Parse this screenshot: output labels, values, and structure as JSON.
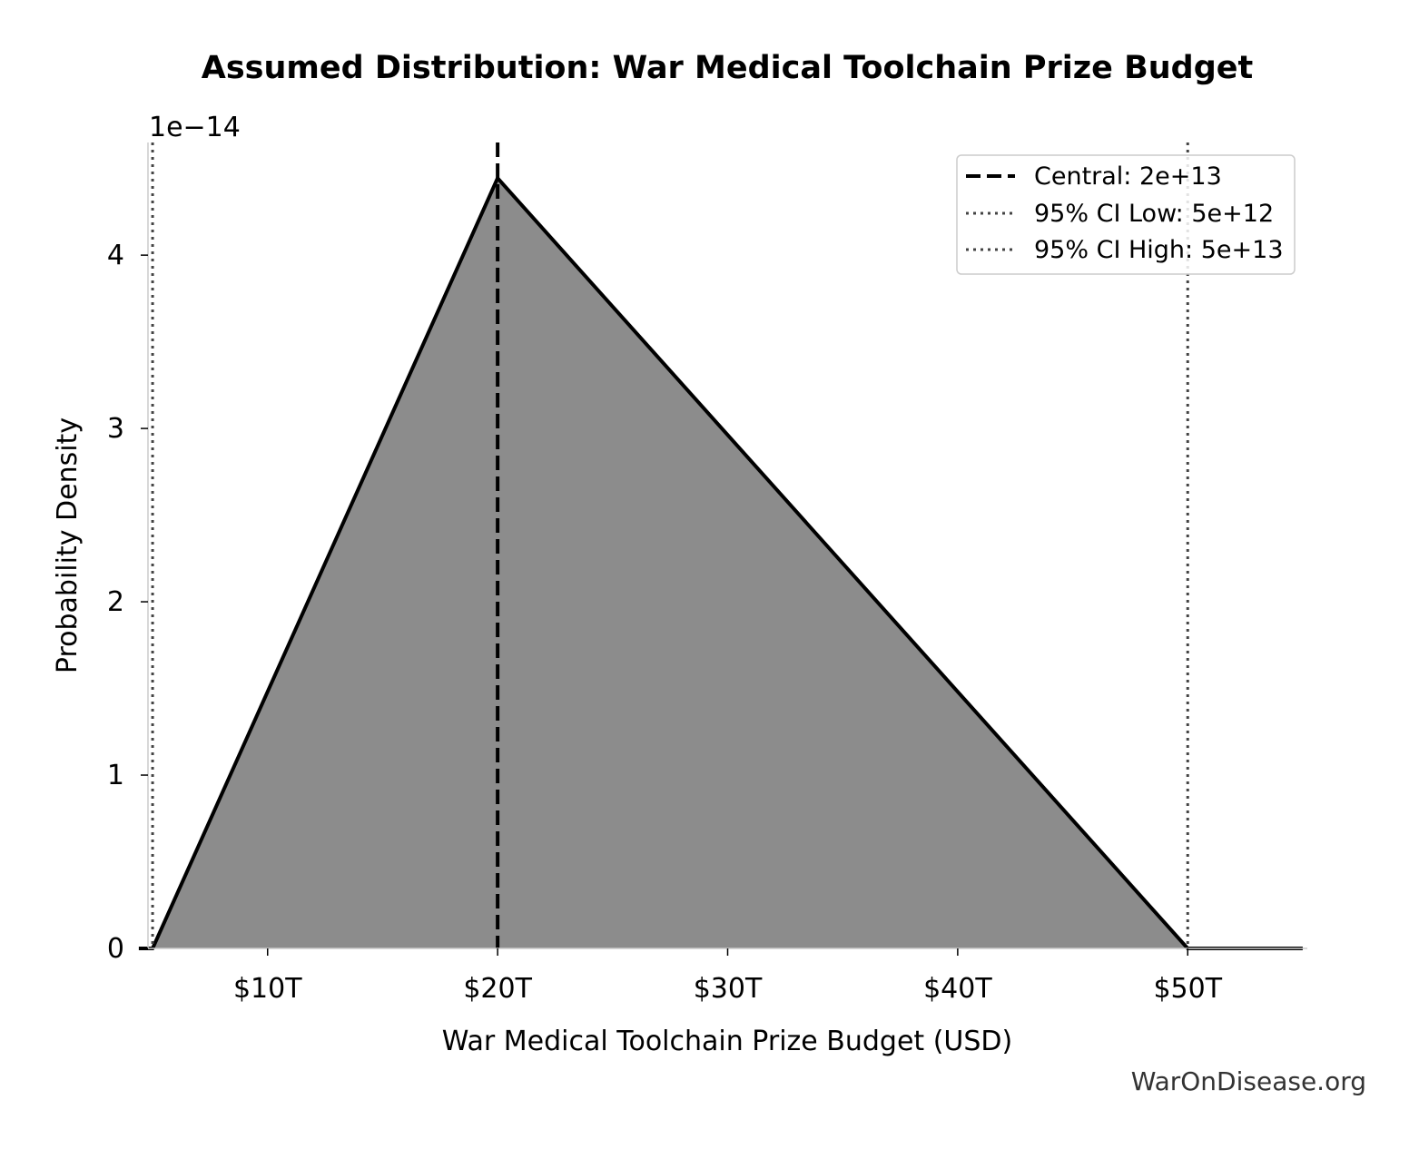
{
  "chart_data": {
    "type": "area",
    "title": "Assumed Distribution: War Medical Toolchain Prize Budget",
    "xlabel": "War Medical Toolchain Prize Budget (USD)",
    "ylabel": "Probability Density",
    "y_offset_label": "1e−14",
    "xlim": [
      4800000000000.0,
      55200000000000.0
    ],
    "ylim": [
      0,
      4.65
    ],
    "x_ticks": [
      {
        "value": 10000000000000.0,
        "label": "$10T"
      },
      {
        "value": 20000000000000.0,
        "label": "$20T"
      },
      {
        "value": 30000000000000.0,
        "label": "$30T"
      },
      {
        "value": 40000000000000.0,
        "label": "$40T"
      },
      {
        "value": 50000000000000.0,
        "label": "$50T"
      }
    ],
    "y_ticks": [
      {
        "value": 0,
        "label": "0"
      },
      {
        "value": 1,
        "label": "1"
      },
      {
        "value": 2,
        "label": "2"
      },
      {
        "value": 3,
        "label": "3"
      },
      {
        "value": 4,
        "label": "4"
      }
    ],
    "series": [
      {
        "x": [
          4400000000000.0,
          5000000000000.0,
          20000000000000.0,
          50000000000000.0,
          55000000000000.0
        ],
        "y": [
          0,
          0,
          4.444,
          0,
          0
        ],
        "fill_color": "#8c8c8c",
        "line_color": "#000000"
      }
    ],
    "reference_lines": [
      {
        "name": "Central: 2e+13",
        "x": 20000000000000.0,
        "style": "dashed",
        "color": "#000000"
      },
      {
        "name": "95% CI Low: 5e+12",
        "x": 5000000000000.0,
        "style": "dotted",
        "color": "#444444"
      },
      {
        "name": "95% CI High: 5e+13",
        "x": 50000000000000.0,
        "style": "dotted",
        "color": "#444444"
      }
    ],
    "legend_position": "top-right",
    "grid": false
  },
  "watermark": "WarOnDisease.org"
}
